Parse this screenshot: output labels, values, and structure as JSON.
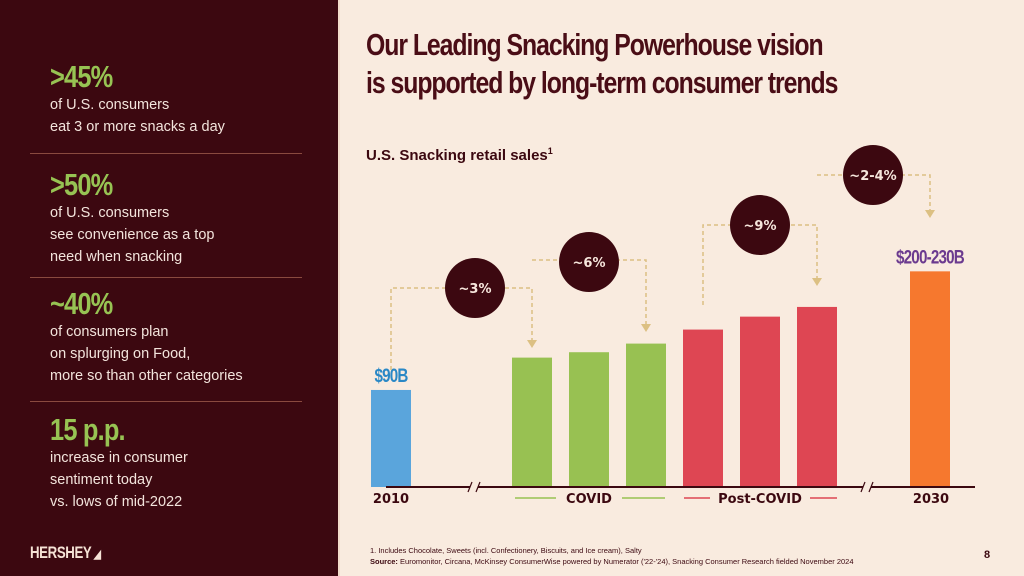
{
  "sidebar": {
    "stats": [
      {
        "value": ">45%",
        "lines": [
          "of U.S. consumers",
          "eat 3 or more snacks a day"
        ]
      },
      {
        "value": ">50%",
        "lines": [
          "of U.S. consumers",
          "see convenience as a top",
          "need when snacking"
        ]
      },
      {
        "value": "~40%",
        "lines": [
          "of consumers plan",
          "on splurging on Food,",
          "more so than other categories"
        ]
      },
      {
        "value": "15 p.p.",
        "lines": [
          "increase in consumer",
          "sentiment today",
          "vs. lows of mid-2022"
        ]
      }
    ],
    "logo": "HERSHEY"
  },
  "header": {
    "title_line1": "Our Leading Snacking Powerhouse vision",
    "title_line2": "is supported by long-term consumer trends"
  },
  "chart_data": {
    "type": "bar",
    "title": "U.S. Snacking retail sales",
    "title_footnote_marker": "1",
    "ylabel": "",
    "xlabel": "",
    "ylim": [
      0,
      230
    ],
    "grid": false,
    "bars": [
      {
        "group": "2010",
        "value": 90,
        "color": "#5aa5dc",
        "label": "$90B",
        "label_color": "#2a88c6"
      },
      {
        "group": "COVID",
        "value": 120,
        "color": "#98c152"
      },
      {
        "group": "COVID",
        "value": 125,
        "color": "#98c152"
      },
      {
        "group": "COVID",
        "value": 133,
        "color": "#98c152"
      },
      {
        "group": "Post-COVID",
        "value": 146,
        "color": "#de4653"
      },
      {
        "group": "Post-COVID",
        "value": 158,
        "color": "#de4653"
      },
      {
        "group": "Post-COVID",
        "value": 167,
        "color": "#de4653"
      },
      {
        "group": "2030",
        "value": 200,
        "color": "#f6782e",
        "label": "$200-230B",
        "label_color": "#6b3a8f"
      }
    ],
    "group_labels": [
      {
        "text": "2010",
        "color": "#3c0810"
      },
      {
        "text": "COVID",
        "color": "#98c152"
      },
      {
        "text": "Post-COVID",
        "color": "#de4653"
      },
      {
        "text": "2030",
        "color": "#3c0810"
      }
    ],
    "growth_annotations": [
      {
        "label": "~3%",
        "from_bar": 0,
        "to_bar": 1
      },
      {
        "label": "~6%",
        "from_bar": 1,
        "to_bar": 3
      },
      {
        "label": "~9%",
        "from_bar": 4,
        "to_bar": 6
      },
      {
        "label": "~2-4%",
        "from_bar": 6,
        "to_bar": 7
      }
    ],
    "axis_break_marks": 2
  },
  "footer": {
    "footnote": "1. Includes Chocolate, Sweets (incl. Confectionery, Biscuits, and Ice cream), Salty",
    "source_label": "Source:",
    "source_text": " Euromonitor, Circana, McKinsey ConsumerWise powered by Numerator ('22-'24), Snacking Consumer Research fielded November 2024",
    "page_number": "8"
  },
  "colors": {
    "sidebar_bg": "#3c0810",
    "page_bg": "#f9ebdf",
    "stat_green": "#97c353",
    "bubble": "#3c0810",
    "connector": "#dcc083"
  }
}
